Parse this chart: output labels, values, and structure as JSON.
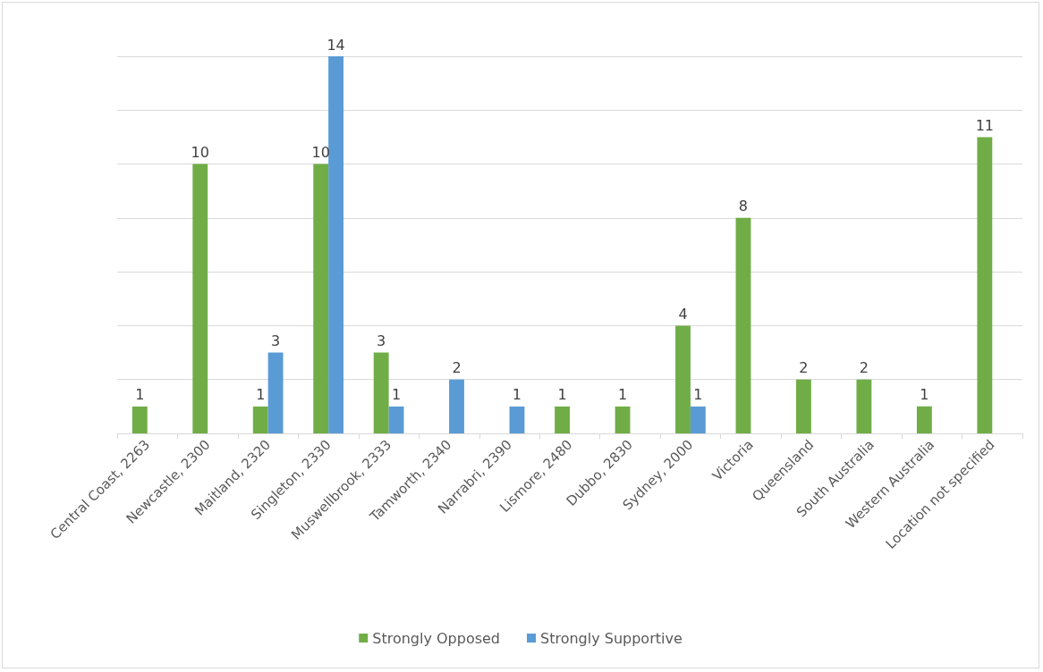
{
  "chart_data": {
    "type": "bar",
    "categories": [
      "Central Coast, 2263",
      "Newcastle, 2300",
      "Maitland, 2320",
      "Singleton, 2330",
      "Muswellbrook, 2333",
      "Tamworth, 2340",
      "Narrabri, 2390",
      "Lismore, 2480",
      "Dubbo, 2830",
      "Sydney, 2000",
      "Victoria",
      "Queensland",
      "South Australia",
      "Western Australia",
      "Location not specified"
    ],
    "series": [
      {
        "name": "Strongly Opposed",
        "color": "#70ad47",
        "values": [
          1,
          10,
          1,
          10,
          3,
          null,
          null,
          1,
          1,
          4,
          8,
          2,
          2,
          1,
          11
        ]
      },
      {
        "name": "Strongly Supportive",
        "color": "#5b9bd5",
        "values": [
          null,
          null,
          3,
          14,
          1,
          2,
          1,
          null,
          null,
          1,
          null,
          null,
          null,
          null,
          null
        ]
      }
    ],
    "ylim": [
      0,
      14
    ],
    "yticks": [
      {
        "value": 0,
        "label": null
      },
      {
        "value": 2,
        "label": null
      },
      {
        "value": 4,
        "label": null
      },
      {
        "value": 6,
        "label": null
      },
      {
        "value": 8,
        "label": null
      },
      {
        "value": 10,
        "label": null
      },
      {
        "value": 12,
        "label": null
      },
      {
        "value": 14,
        "label": null
      }
    ],
    "tick_labels": "x",
    "grid": "y",
    "legend": "bottom",
    "data_labels": true
  }
}
